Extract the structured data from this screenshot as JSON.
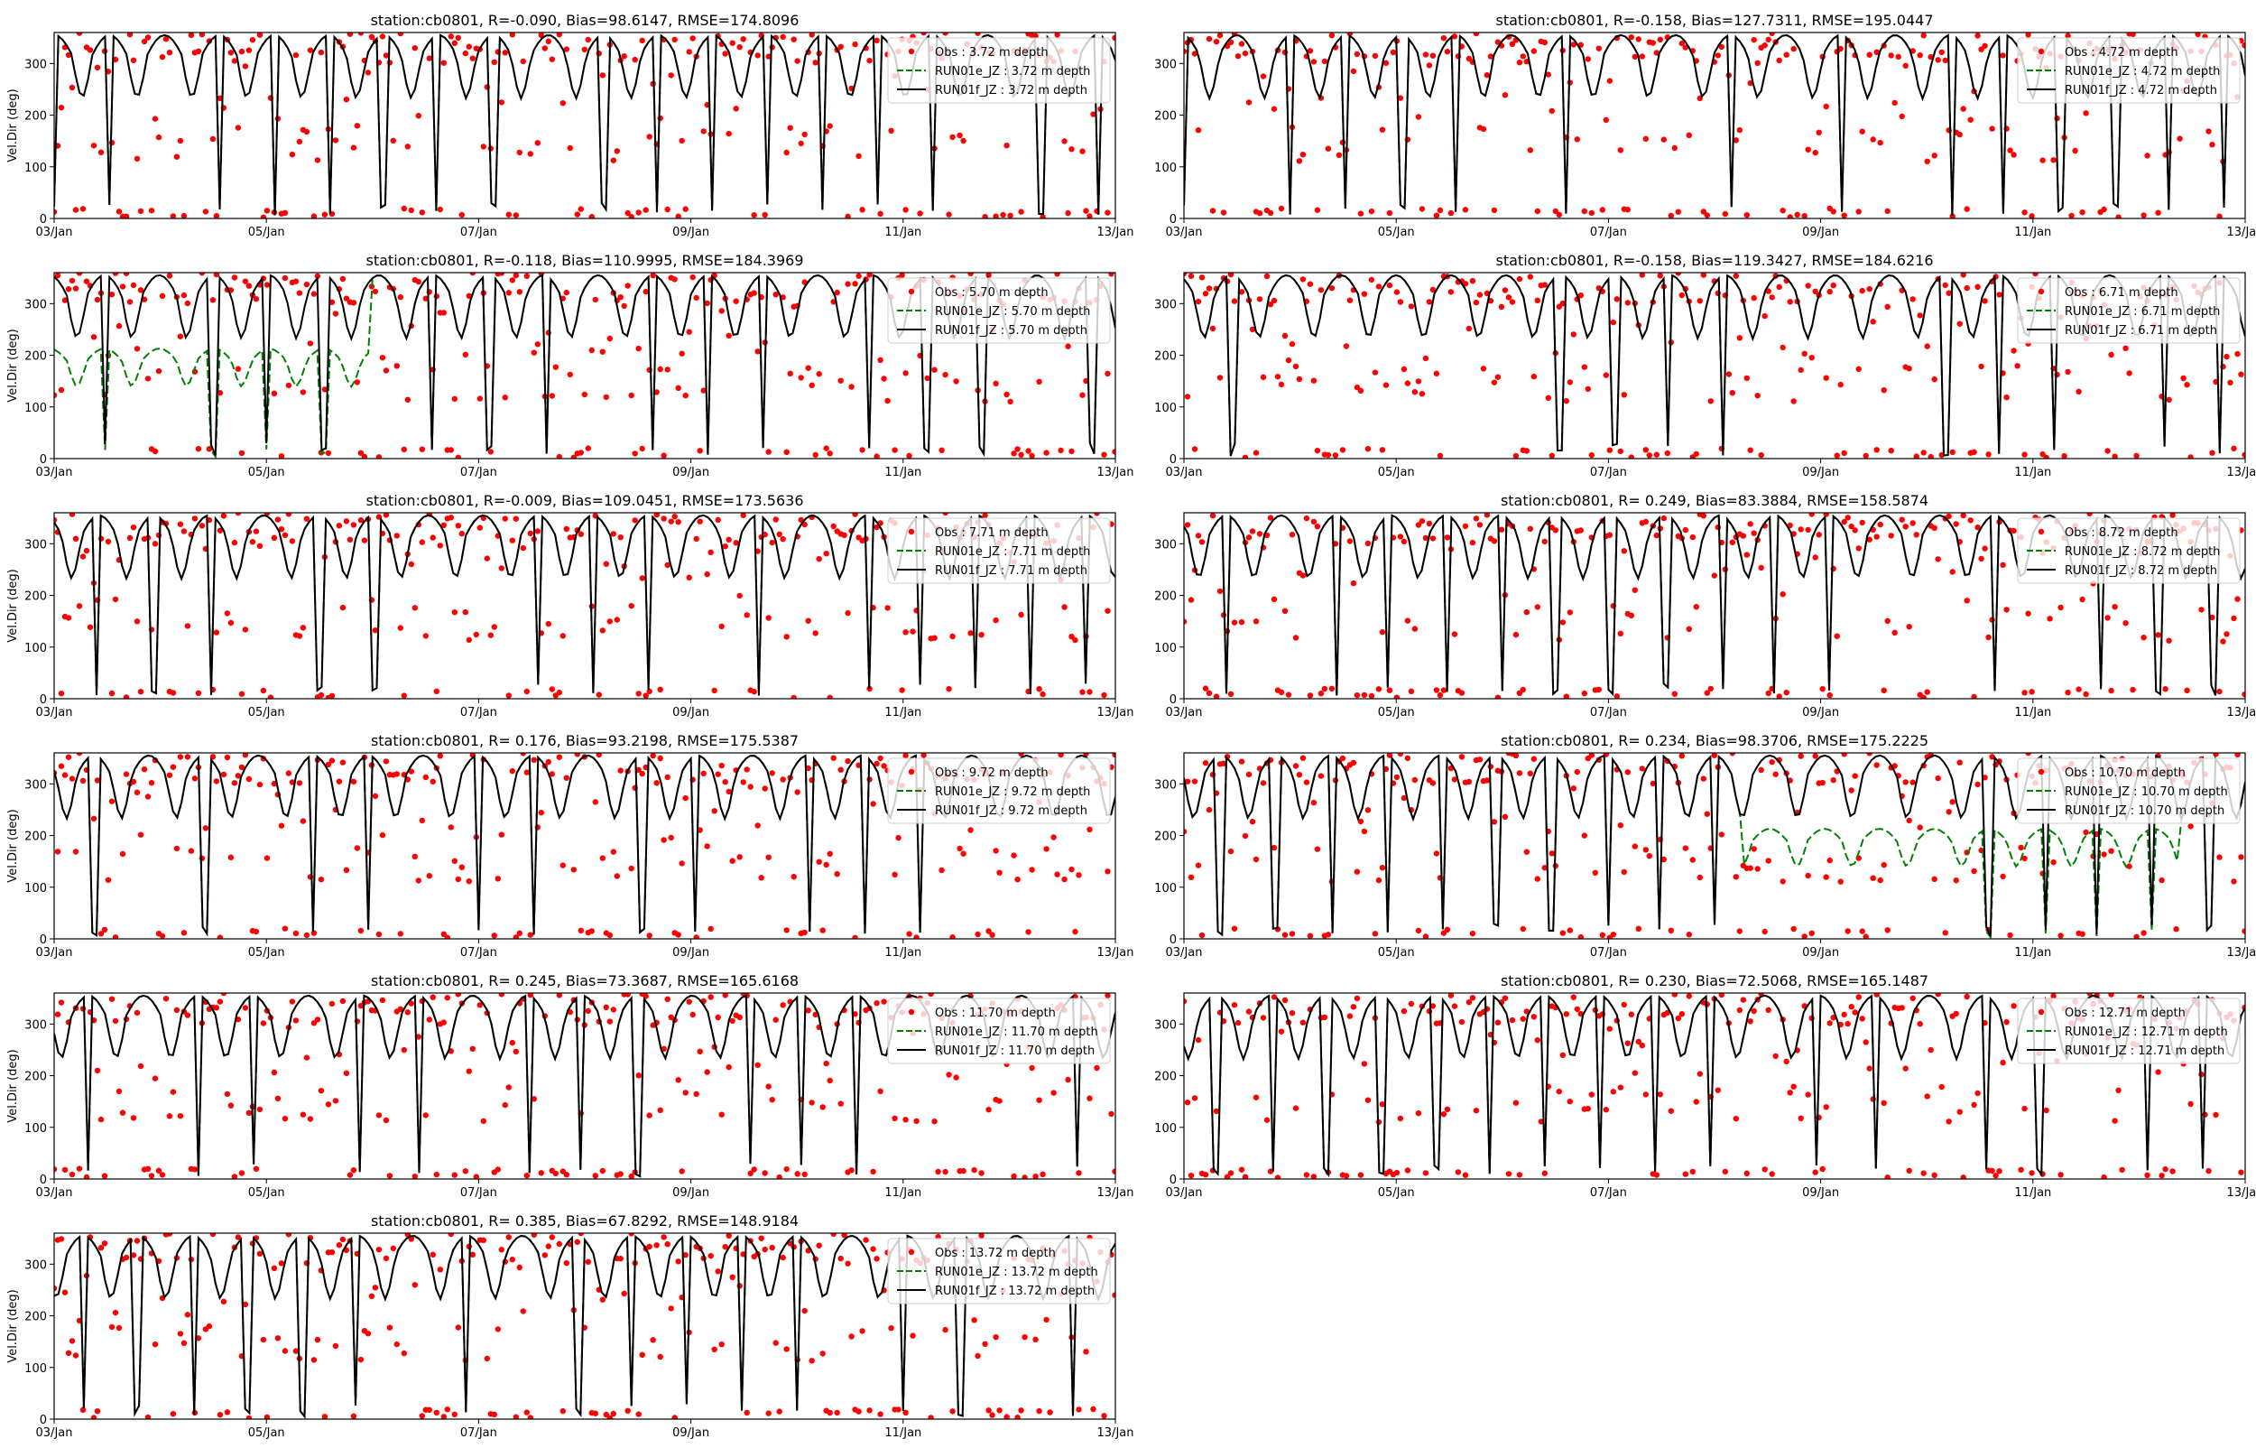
{
  "figure": {
    "colors": {
      "obs": "#ff0000",
      "run_e": "#008000",
      "run_f": "#000000",
      "axes": "#000000",
      "background": "#ffffff"
    }
  },
  "chart_data": [
    {
      "type": "line",
      "title": "station:cb0801, R=-0.090, Bias=98.6147, RMSE=174.8096",
      "xlabel": "",
      "ylabel": "Vel.Dir (deg)",
      "x_ticks": [
        "03/Jan",
        "05/Jan",
        "07/Jan",
        "09/Jan",
        "11/Jan",
        "13/Jan"
      ],
      "xlim": [
        "2000-01-03",
        "2000-01-13"
      ],
      "y_ticks": [
        0,
        100,
        200,
        300
      ],
      "ylim": [
        0,
        360
      ],
      "legend_position": "upper right",
      "series": [
        {
          "name": "Obs : 3.72 m depth",
          "kind": "scatter",
          "color": "#ff0000"
        },
        {
          "name": "RUN01e_JZ : 3.72 m depth",
          "kind": "line",
          "style": "dashed",
          "color": "#008000"
        },
        {
          "name": "RUN01f_JZ : 3.72 m depth",
          "kind": "line",
          "style": "solid",
          "color": "#000000"
        }
      ]
    },
    {
      "type": "line",
      "title": "station:cb0801, R=-0.158, Bias=127.7311, RMSE=195.0447",
      "xlabel": "",
      "ylabel": "",
      "x_ticks": [
        "03/Jan",
        "05/Jan",
        "07/Jan",
        "09/Jan",
        "11/Jan",
        "13/Jan"
      ],
      "xlim": [
        "2000-01-03",
        "2000-01-13"
      ],
      "y_ticks": [
        0,
        100,
        200,
        300
      ],
      "ylim": [
        0,
        360
      ],
      "legend_position": "upper right",
      "series": [
        {
          "name": "Obs : 4.72 m depth",
          "kind": "scatter",
          "color": "#ff0000"
        },
        {
          "name": "RUN01e_JZ : 4.72 m depth",
          "kind": "line",
          "style": "dashed",
          "color": "#008000"
        },
        {
          "name": "RUN01f_JZ : 4.72 m depth",
          "kind": "line",
          "style": "solid",
          "color": "#000000"
        }
      ]
    },
    {
      "type": "line",
      "title": "station:cb0801, R=-0.118, Bias=110.9995, RMSE=184.3969",
      "xlabel": "",
      "ylabel": "Vel.Dir (deg)",
      "x_ticks": [
        "03/Jan",
        "05/Jan",
        "07/Jan",
        "09/Jan",
        "11/Jan",
        "13/Jan"
      ],
      "xlim": [
        "2000-01-03",
        "2000-01-13"
      ],
      "y_ticks": [
        0,
        100,
        200,
        300
      ],
      "ylim": [
        0,
        360
      ],
      "legend_position": "upper right",
      "series": [
        {
          "name": "Obs : 5.70 m depth",
          "kind": "scatter",
          "color": "#ff0000"
        },
        {
          "name": "RUN01e_JZ : 5.70 m depth",
          "kind": "line",
          "style": "dashed",
          "color": "#008000"
        },
        {
          "name": "RUN01f_JZ : 5.70 m depth",
          "kind": "line",
          "style": "solid",
          "color": "#000000"
        }
      ]
    },
    {
      "type": "line",
      "title": "station:cb0801, R=-0.158, Bias=119.3427, RMSE=184.6216",
      "xlabel": "",
      "ylabel": "",
      "x_ticks": [
        "03/Jan",
        "05/Jan",
        "07/Jan",
        "09/Jan",
        "11/Jan",
        "13/Jan"
      ],
      "xlim": [
        "2000-01-03",
        "2000-01-13"
      ],
      "y_ticks": [
        0,
        100,
        200,
        300
      ],
      "ylim": [
        0,
        360
      ],
      "legend_position": "upper right",
      "series": [
        {
          "name": "Obs : 6.71 m depth",
          "kind": "scatter",
          "color": "#ff0000"
        },
        {
          "name": "RUN01e_JZ : 6.71 m depth",
          "kind": "line",
          "style": "dashed",
          "color": "#008000"
        },
        {
          "name": "RUN01f_JZ : 6.71 m depth",
          "kind": "line",
          "style": "solid",
          "color": "#000000"
        }
      ]
    },
    {
      "type": "line",
      "title": "station:cb0801, R=-0.009, Bias=109.0451, RMSE=173.5636",
      "xlabel": "",
      "ylabel": "Vel.Dir (deg)",
      "x_ticks": [
        "03/Jan",
        "05/Jan",
        "07/Jan",
        "09/Jan",
        "11/Jan",
        "13/Jan"
      ],
      "xlim": [
        "2000-01-03",
        "2000-01-13"
      ],
      "y_ticks": [
        0,
        100,
        200,
        300
      ],
      "ylim": [
        0,
        360
      ],
      "legend_position": "upper right",
      "series": [
        {
          "name": "Obs : 7.71 m depth",
          "kind": "scatter",
          "color": "#ff0000"
        },
        {
          "name": "RUN01e_JZ : 7.71 m depth",
          "kind": "line",
          "style": "dashed",
          "color": "#008000"
        },
        {
          "name": "RUN01f_JZ : 7.71 m depth",
          "kind": "line",
          "style": "solid",
          "color": "#000000"
        }
      ]
    },
    {
      "type": "line",
      "title": "station:cb0801, R= 0.249, Bias=83.3884, RMSE=158.5874",
      "xlabel": "",
      "ylabel": "",
      "x_ticks": [
        "03/Jan",
        "05/Jan",
        "07/Jan",
        "09/Jan",
        "11/Jan",
        "13/Jan"
      ],
      "xlim": [
        "2000-01-03",
        "2000-01-13"
      ],
      "y_ticks": [
        0,
        100,
        200,
        300
      ],
      "ylim": [
        0,
        360
      ],
      "legend_position": "upper right",
      "series": [
        {
          "name": "Obs : 8.72 m depth",
          "kind": "scatter",
          "color": "#ff0000"
        },
        {
          "name": "RUN01e_JZ : 8.72 m depth",
          "kind": "line",
          "style": "dashed",
          "color": "#008000"
        },
        {
          "name": "RUN01f_JZ : 8.72 m depth",
          "kind": "line",
          "style": "solid",
          "color": "#000000"
        }
      ]
    },
    {
      "type": "line",
      "title": "station:cb0801, R= 0.176, Bias=93.2198, RMSE=175.5387",
      "xlabel": "",
      "ylabel": "Vel.Dir (deg)",
      "x_ticks": [
        "03/Jan",
        "05/Jan",
        "07/Jan",
        "09/Jan",
        "11/Jan",
        "13/Jan"
      ],
      "xlim": [
        "2000-01-03",
        "2000-01-13"
      ],
      "y_ticks": [
        0,
        100,
        200,
        300
      ],
      "ylim": [
        0,
        360
      ],
      "legend_position": "upper right",
      "series": [
        {
          "name": "Obs : 9.72 m depth",
          "kind": "scatter",
          "color": "#ff0000"
        },
        {
          "name": "RUN01e_JZ : 9.72 m depth",
          "kind": "line",
          "style": "dashed",
          "color": "#008000"
        },
        {
          "name": "RUN01f_JZ : 9.72 m depth",
          "kind": "line",
          "style": "solid",
          "color": "#000000"
        }
      ]
    },
    {
      "type": "line",
      "title": "station:cb0801, R= 0.234, Bias=98.3706, RMSE=175.2225",
      "xlabel": "",
      "ylabel": "",
      "x_ticks": [
        "03/Jan",
        "05/Jan",
        "07/Jan",
        "09/Jan",
        "11/Jan",
        "13/Jan"
      ],
      "xlim": [
        "2000-01-03",
        "2000-01-13"
      ],
      "y_ticks": [
        0,
        100,
        200,
        300
      ],
      "ylim": [
        0,
        360
      ],
      "legend_position": "upper right",
      "series": [
        {
          "name": "Obs : 10.70 m depth",
          "kind": "scatter",
          "color": "#ff0000"
        },
        {
          "name": "RUN01e_JZ : 10.70 m depth",
          "kind": "line",
          "style": "dashed",
          "color": "#008000"
        },
        {
          "name": "RUN01f_JZ : 10.70 m depth",
          "kind": "line",
          "style": "solid",
          "color": "#000000"
        }
      ]
    },
    {
      "type": "line",
      "title": "station:cb0801, R= 0.245, Bias=73.3687, RMSE=165.6168",
      "xlabel": "",
      "ylabel": "Vel.Dir (deg)",
      "x_ticks": [
        "03/Jan",
        "05/Jan",
        "07/Jan",
        "09/Jan",
        "11/Jan",
        "13/Jan"
      ],
      "xlim": [
        "2000-01-03",
        "2000-01-13"
      ],
      "y_ticks": [
        0,
        100,
        200,
        300
      ],
      "ylim": [
        0,
        360
      ],
      "legend_position": "upper right",
      "series": [
        {
          "name": "Obs : 11.70 m depth",
          "kind": "scatter",
          "color": "#ff0000"
        },
        {
          "name": "RUN01e_JZ : 11.70 m depth",
          "kind": "line",
          "style": "dashed",
          "color": "#008000"
        },
        {
          "name": "RUN01f_JZ : 11.70 m depth",
          "kind": "line",
          "style": "solid",
          "color": "#000000"
        }
      ]
    },
    {
      "type": "line",
      "title": "station:cb0801, R= 0.230, Bias=72.5068, RMSE=165.1487",
      "xlabel": "",
      "ylabel": "",
      "x_ticks": [
        "03/Jan",
        "05/Jan",
        "07/Jan",
        "09/Jan",
        "11/Jan",
        "13/Jan"
      ],
      "xlim": [
        "2000-01-03",
        "2000-01-13"
      ],
      "y_ticks": [
        0,
        100,
        200,
        300
      ],
      "ylim": [
        0,
        360
      ],
      "legend_position": "upper right",
      "series": [
        {
          "name": "Obs : 12.71 m depth",
          "kind": "scatter",
          "color": "#ff0000"
        },
        {
          "name": "RUN01e_JZ : 12.71 m depth",
          "kind": "line",
          "style": "dashed",
          "color": "#008000"
        },
        {
          "name": "RUN01f_JZ : 12.71 m depth",
          "kind": "line",
          "style": "solid",
          "color": "#000000"
        }
      ]
    },
    {
      "type": "line",
      "title": "station:cb0801, R= 0.385, Bias=67.8292, RMSE=148.9184",
      "xlabel": "",
      "ylabel": "Vel.Dir (deg)",
      "x_ticks": [
        "03/Jan",
        "05/Jan",
        "07/Jan",
        "09/Jan",
        "11/Jan",
        "13/Jan"
      ],
      "xlim": [
        "2000-01-03",
        "2000-01-13"
      ],
      "y_ticks": [
        0,
        100,
        200,
        300
      ],
      "ylim": [
        0,
        360
      ],
      "legend_position": "upper right",
      "series": [
        {
          "name": "Obs : 13.72 m depth",
          "kind": "scatter",
          "color": "#ff0000"
        },
        {
          "name": "RUN01e_JZ : 13.72 m depth",
          "kind": "line",
          "style": "dashed",
          "color": "#008000"
        },
        {
          "name": "RUN01f_JZ : 13.72 m depth",
          "kind": "line",
          "style": "solid",
          "color": "#000000"
        }
      ]
    }
  ]
}
